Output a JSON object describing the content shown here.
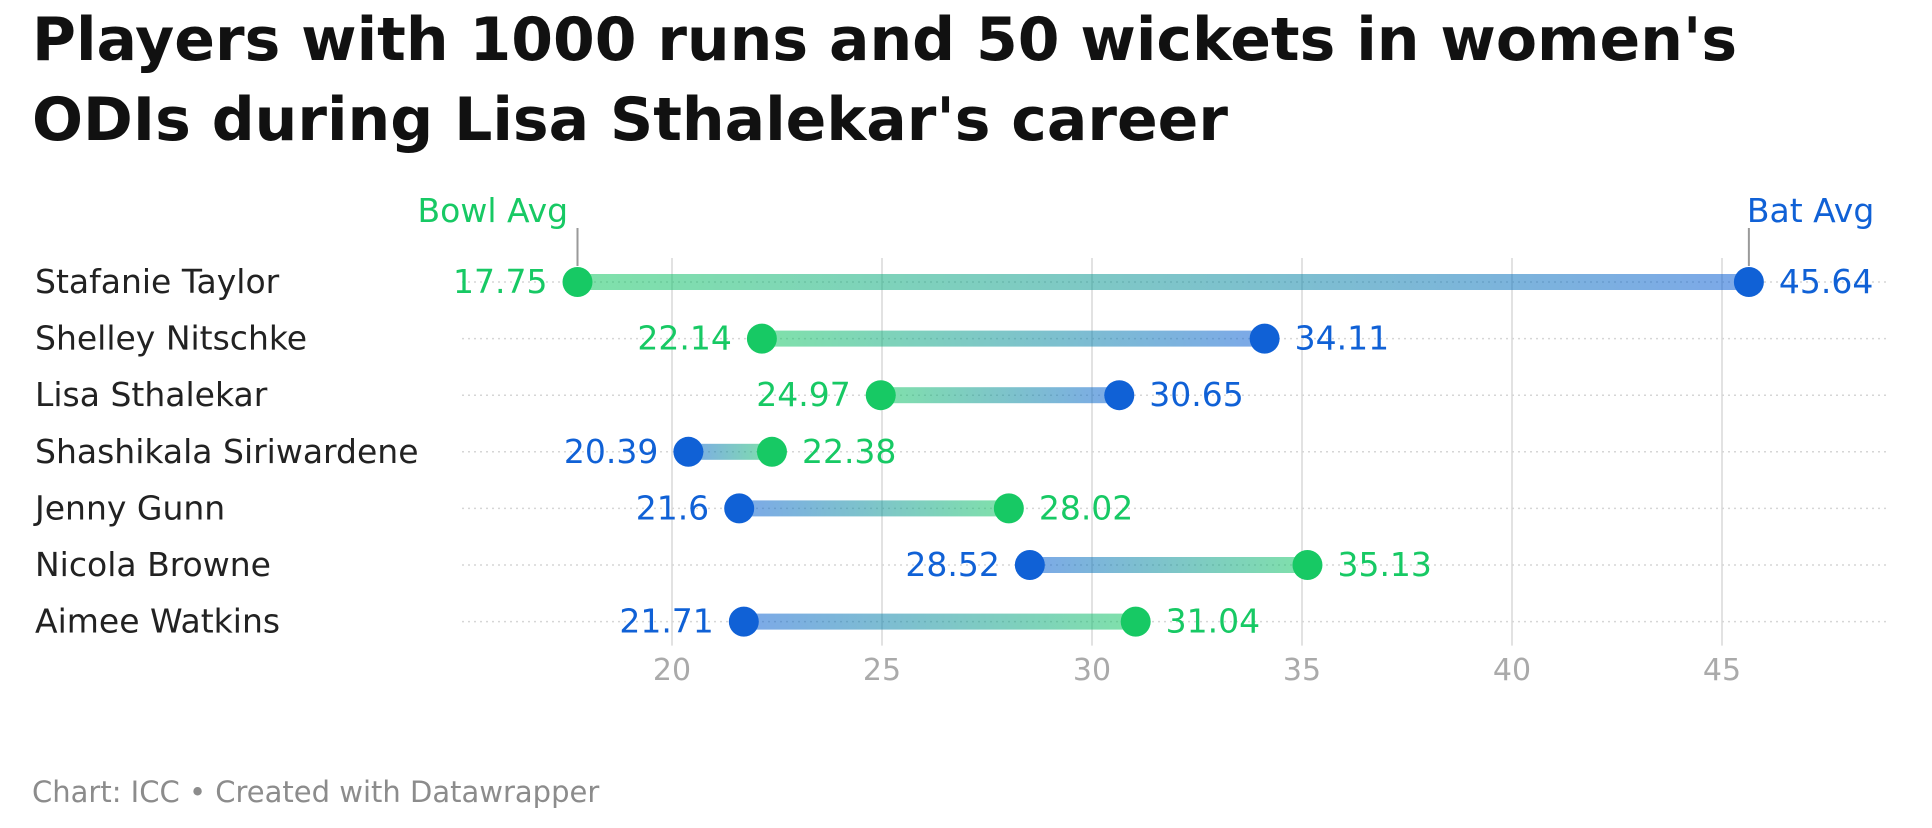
{
  "title": "Players with 1000 runs and 50 wickets in women's ODIs during Lisa Sthalekar's career",
  "footer": "Chart: ICC • Created with Datawrapper",
  "colors": {
    "bowl": "#17c964",
    "bat": "#1061d6",
    "grid": "#e2e2e2",
    "tick": "#aaaaaa",
    "label": "#222222"
  },
  "chart_data": {
    "type": "dot-range",
    "legend": {
      "bowl": "Bowl Avg",
      "bat": "Bat Avg"
    },
    "xlim": [
      15,
      49
    ],
    "ticks": [
      20,
      25,
      30,
      35,
      40,
      45
    ],
    "series": [
      {
        "name": "Bowl Avg",
        "key": "bowl"
      },
      {
        "name": "Bat Avg",
        "key": "bat"
      }
    ],
    "rows": [
      {
        "name": "Stafanie Taylor",
        "bowl": 17.75,
        "bat": 45.64,
        "bowl_label": "17.75",
        "bat_label": "45.64"
      },
      {
        "name": "Shelley Nitschke",
        "bowl": 22.14,
        "bat": 34.11,
        "bowl_label": "22.14",
        "bat_label": "34.11"
      },
      {
        "name": "Lisa Sthalekar",
        "bowl": 24.97,
        "bat": 30.65,
        "bowl_label": "24.97",
        "bat_label": "30.65"
      },
      {
        "name": "Shashikala Siriwardene",
        "bowl": 22.38,
        "bat": 20.39,
        "bowl_label": "22.38",
        "bat_label": "20.39"
      },
      {
        "name": "Jenny Gunn",
        "bowl": 28.02,
        "bat": 21.6,
        "bowl_label": "28.02",
        "bat_label": "21.6"
      },
      {
        "name": "Nicola Browne",
        "bowl": 35.13,
        "bat": 28.52,
        "bowl_label": "35.13",
        "bat_label": "28.52"
      },
      {
        "name": "Aimee Watkins",
        "bowl": 31.04,
        "bat": 21.71,
        "bowl_label": "31.04",
        "bat_label": "21.71"
      }
    ]
  }
}
